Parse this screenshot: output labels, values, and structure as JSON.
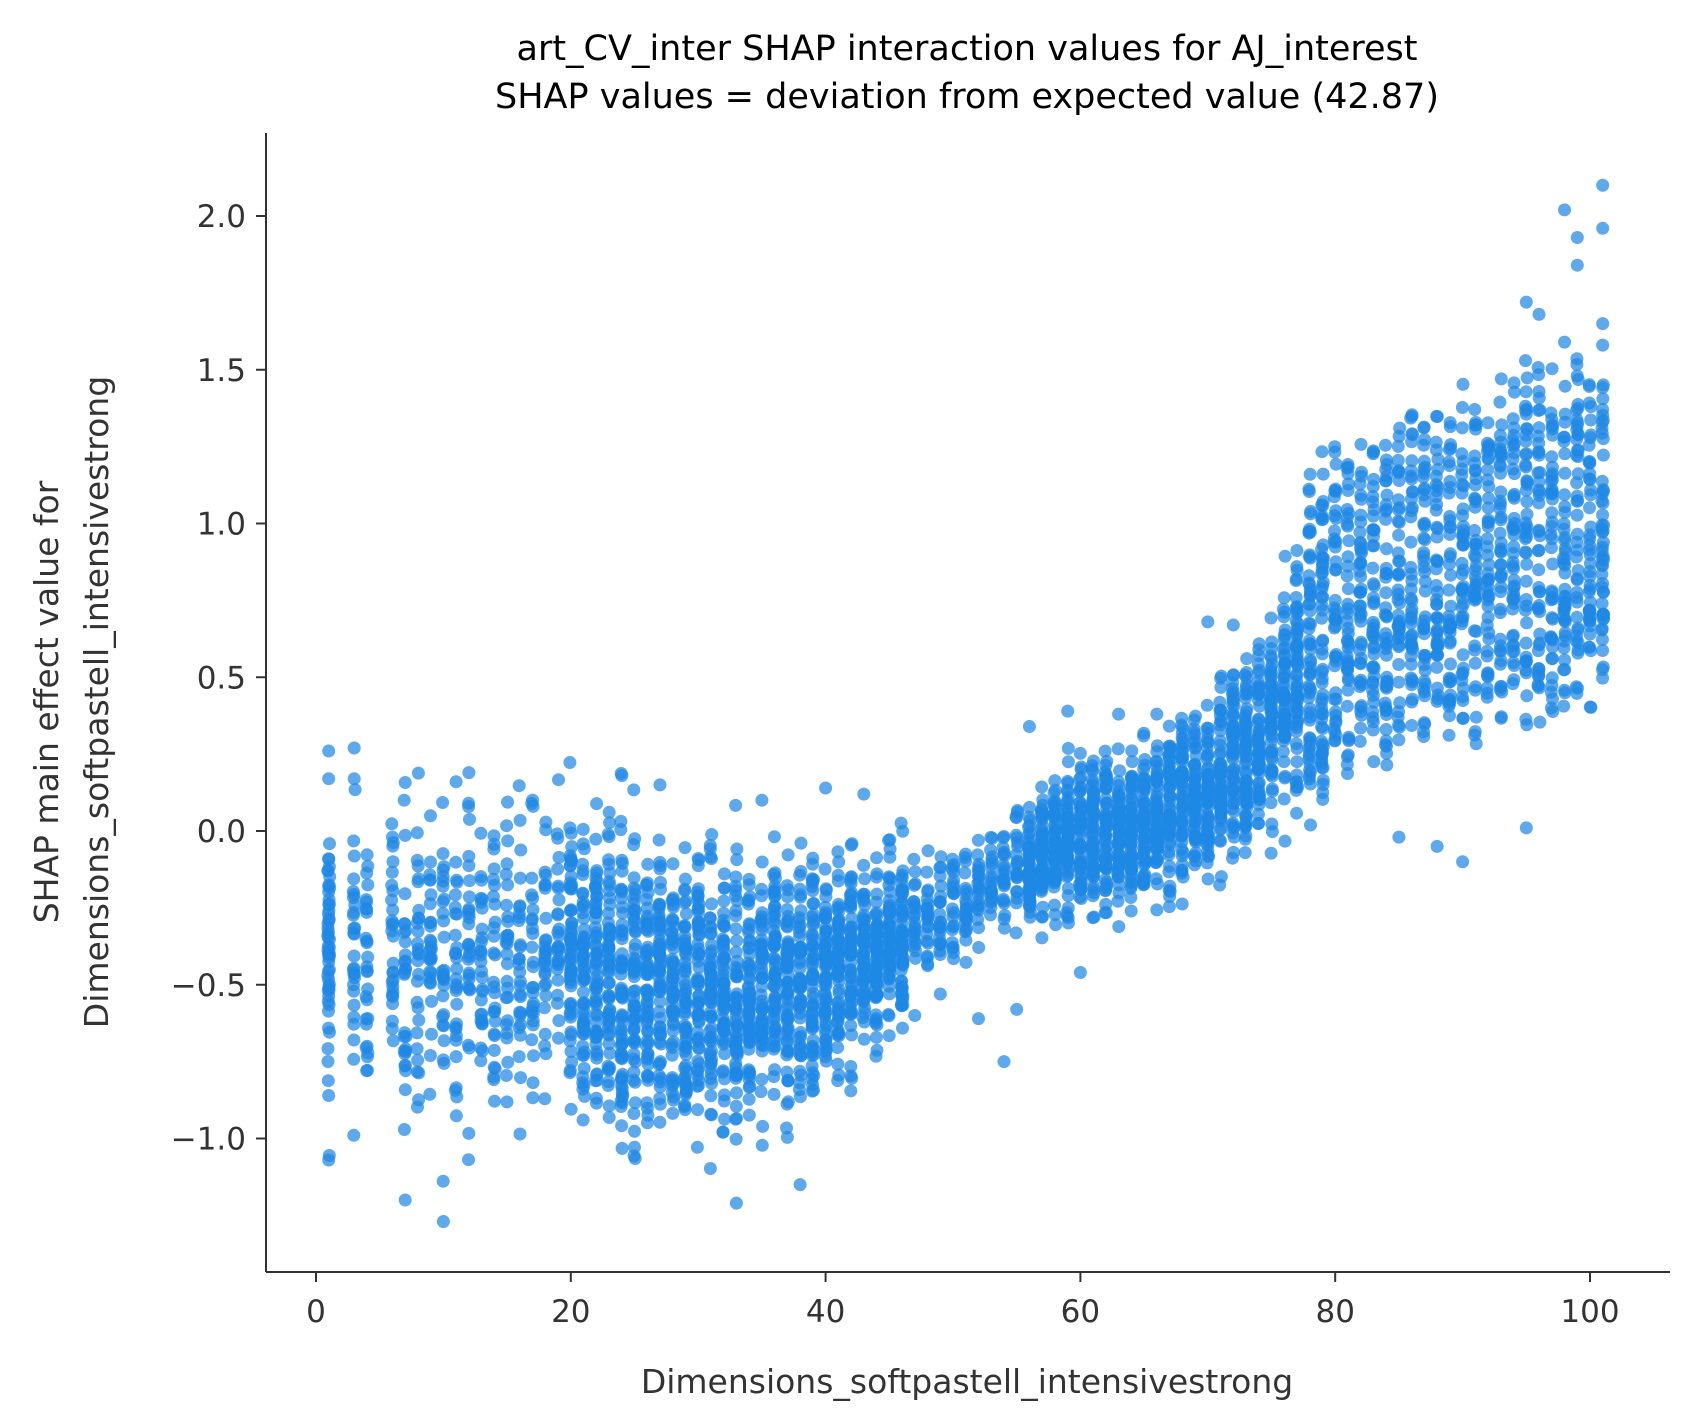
{
  "chart_data": {
    "type": "scatter",
    "title": "art_CV_inter SHAP interaction values for AJ_interest",
    "subtitle": "SHAP values = deviation from expected value (42.87)",
    "xlabel": "Dimensions_softpastell_intensivestrong",
    "ylabel_line1": "SHAP main effect value for",
    "ylabel_line2": "Dimensions_softpastell_intensivestrong",
    "xlim": [
      -4,
      106
    ],
    "ylim": [
      -1.4,
      2.28
    ],
    "x_ticks": [
      0,
      20,
      40,
      60,
      80,
      100
    ],
    "x_tick_labels": [
      "0",
      "20",
      "40",
      "60",
      "80",
      "100"
    ],
    "y_ticks": [
      -1.0,
      -0.5,
      0.0,
      0.5,
      1.0,
      1.5,
      2.0
    ],
    "y_tick_labels": [
      "−1.0",
      "−0.5",
      "0.0",
      "0.5",
      "1.0",
      "1.5",
      "2.0"
    ],
    "grid": false,
    "legend": "none",
    "point_color": "#1e88e5",
    "point_opacity": 0.72,
    "trend_anchors_x": [
      1,
      10,
      20,
      25,
      30,
      35,
      40,
      45,
      50,
      55,
      60,
      65,
      70,
      75,
      80,
      85,
      90,
      95,
      101
    ],
    "trend_anchors_y": [
      -0.42,
      -0.42,
      -0.43,
      -0.5,
      -0.52,
      -0.52,
      -0.47,
      -0.36,
      -0.23,
      -0.12,
      -0.02,
      0.02,
      0.14,
      0.36,
      0.67,
      0.78,
      0.85,
      0.9,
      0.95
    ],
    "spread_anchors": [
      0.32,
      0.33,
      0.32,
      0.3,
      0.28,
      0.27,
      0.25,
      0.18,
      0.12,
      0.12,
      0.16,
      0.17,
      0.18,
      0.2,
      0.35,
      0.35,
      0.36,
      0.38,
      0.45
    ],
    "points": [
      [
        1,
        0.26
      ],
      [
        1,
        -1.07
      ],
      [
        1,
        -0.86
      ],
      [
        1,
        0.17
      ],
      [
        3,
        0.27
      ],
      [
        3,
        0.17
      ],
      [
        10,
        -1.27
      ],
      [
        7,
        -1.2
      ],
      [
        33,
        -1.21
      ],
      [
        38,
        -1.15
      ],
      [
        98,
        2.02
      ],
      [
        101,
        2.1
      ],
      [
        101,
        1.96
      ],
      [
        99,
        1.93
      ],
      [
        99,
        1.84
      ],
      [
        95,
        1.72
      ],
      [
        96,
        1.68
      ],
      [
        98,
        1.59
      ],
      [
        101,
        1.58
      ],
      [
        101,
        1.65
      ],
      [
        90,
        -0.1
      ],
      [
        88,
        -0.05
      ],
      [
        95,
        0.01
      ],
      [
        85,
        -0.02
      ],
      [
        47,
        -0.6
      ],
      [
        52,
        -0.61
      ],
      [
        54,
        -0.75
      ],
      [
        56,
        0.34
      ],
      [
        59,
        0.39
      ],
      [
        24,
        0.18
      ],
      [
        12,
        0.19
      ],
      [
        11,
        0.16
      ],
      [
        27,
        0.15
      ],
      [
        40,
        0.14
      ],
      [
        43,
        0.12
      ],
      [
        63,
        0.38
      ],
      [
        66,
        0.38
      ],
      [
        70,
        0.68
      ],
      [
        72,
        0.67
      ],
      [
        60,
        -0.46
      ],
      [
        49,
        -0.53
      ],
      [
        55,
        -0.58
      ]
    ]
  }
}
